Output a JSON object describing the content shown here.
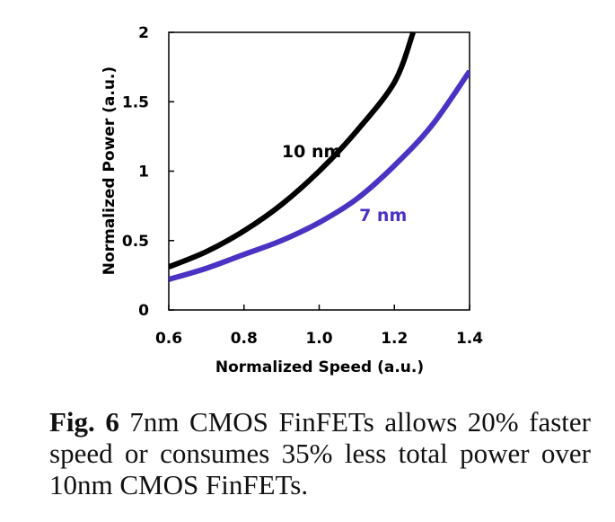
{
  "chart_data": {
    "type": "line",
    "xlabel": "Normalized Speed (a.u.)",
    "ylabel": "Normalized Power (a.u.)",
    "xlim": [
      0.6,
      1.4
    ],
    "ylim": [
      0,
      2
    ],
    "xticks": [
      "0.6",
      "0.8",
      "1.0",
      "1.2",
      "1.4"
    ],
    "yticks": [
      "0",
      "0.5",
      "1",
      "1.5",
      "2"
    ],
    "grid": false,
    "series": [
      {
        "name": "10 nm",
        "color": "#000000",
        "x": [
          0.6,
          0.7,
          0.8,
          0.9,
          1.0,
          1.1,
          1.2,
          1.25
        ],
        "y": [
          0.31,
          0.42,
          0.57,
          0.76,
          1.0,
          1.29,
          1.64,
          2.0
        ]
      },
      {
        "name": "7 nm",
        "color": "#4B32C3",
        "x": [
          0.6,
          0.7,
          0.8,
          0.9,
          1.0,
          1.1,
          1.2,
          1.3,
          1.4
        ],
        "y": [
          0.22,
          0.3,
          0.4,
          0.5,
          0.63,
          0.8,
          1.04,
          1.33,
          1.72
        ]
      }
    ],
    "annotations": [
      {
        "text": "10 nm",
        "color": "#000000",
        "x": 0.98,
        "y": 1.14
      },
      {
        "text": "7 nm",
        "color": "#4B32C3",
        "x": 1.17,
        "y": 0.68
      }
    ]
  },
  "caption": {
    "label": "Fig. 6",
    "text": "7nm CMOS FinFETs allows 20% faster speed or consumes 35% less total power over 10nm CMOS FinFETs."
  }
}
